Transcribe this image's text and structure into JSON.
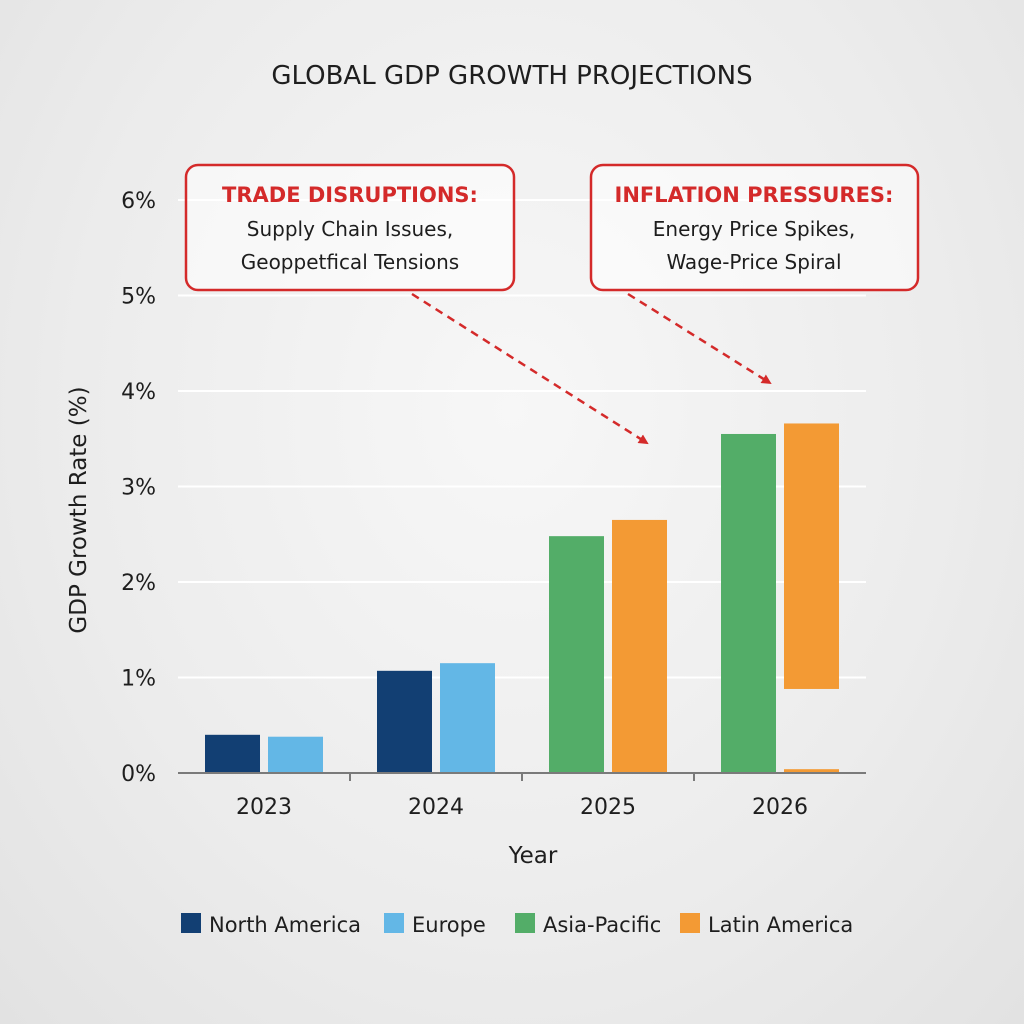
{
  "chart_data": {
    "type": "bar",
    "title": "GLOBAL GDP GROWTH PROJECTIONS",
    "xlabel": "Year",
    "ylabel": "GDP Growth Rate (%)",
    "categories": [
      "2023",
      "2024",
      "2025",
      "2026"
    ],
    "ylim": [
      0,
      6
    ],
    "yticks": [
      "0%",
      "1%",
      "2%",
      "3%",
      "4%",
      "5%",
      "6%"
    ],
    "grid": true,
    "legend_position": "bottom",
    "series": [
      {
        "name": "North America",
        "color": "#123f73",
        "values": [
          0.4,
          1.07,
          null,
          null
        ]
      },
      {
        "name": "Europe",
        "color": "#63b7e6",
        "values": [
          0.38,
          1.15,
          null,
          null
        ]
      },
      {
        "name": "Asia-Pacific",
        "color": "#53ad68",
        "values": [
          null,
          null,
          2.48,
          3.55
        ]
      },
      {
        "name": "Latin America",
        "color": "#f39a34",
        "values": [
          null,
          null,
          2.65,
          [
            0.88,
            3.66
          ]
        ]
      }
    ],
    "extra_marks": [
      {
        "series": "Latin America",
        "category": "2026",
        "range": [
          0,
          0.04
        ]
      }
    ],
    "annotations": [
      {
        "heading": "TRADE DISRUPTIONS:",
        "lines": [
          "Supply Chain Issues,",
          "Geoppetfical Tensions"
        ],
        "points_to": "2025"
      },
      {
        "heading": "INFLATION PRESSURES:",
        "lines": [
          "Energy Price Spikes,",
          "Wage-Price Spiral"
        ],
        "points_to": "2026"
      }
    ],
    "annotation_color": "#d42a2a"
  }
}
